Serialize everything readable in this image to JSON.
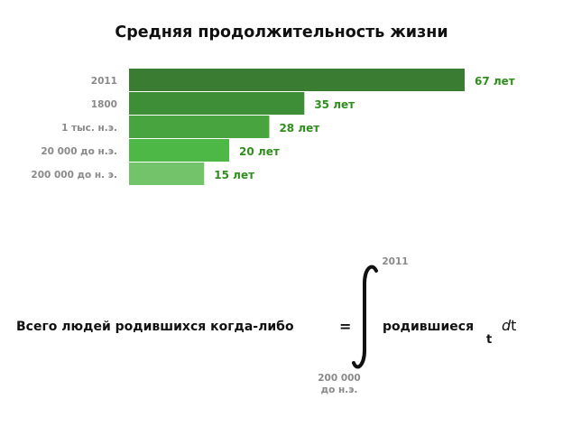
{
  "chart_data": {
    "type": "bar",
    "orientation": "horizontal",
    "title": "Средняя продолжительность жизни",
    "categories": [
      "2011",
      "1800",
      "1 тыс. н.э.",
      "20 000 до н.э.",
      "200 000 до н. э."
    ],
    "values": [
      67,
      35,
      28,
      20,
      15
    ],
    "value_labels": [
      "67 лет",
      "35 лет",
      "28 лет",
      "20 лет",
      "15 лет"
    ],
    "xlim": [
      0,
      67
    ],
    "grid": false,
    "colors": {
      "bars": [
        "#3a7d32",
        "#3e8e38",
        "#47a43f",
        "#4eb846",
        "#72c36a"
      ],
      "value_text": "#2f8f1c"
    }
  },
  "formula": {
    "lhs": "Всего людей родившихся когда-либо",
    "equals": "=",
    "upper_limit": "2011",
    "lower_limit_line1": "200 000",
    "lower_limit_line2": "до н.э.",
    "integrand": "родившиеся",
    "subscript": "t",
    "differential_d": "d",
    "differential_var": "t"
  }
}
